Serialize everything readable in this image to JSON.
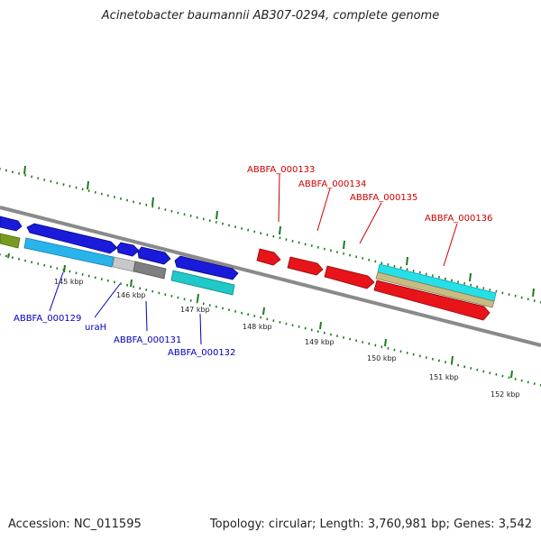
{
  "title": "Acinetobacter baumannii AB307-0294, complete genome",
  "footer": {
    "accession": "Accession: NC_011595",
    "summary": "Topology: circular; Length: 3,760,981 bp; Genes: 3,542"
  },
  "colors": {
    "forward": "#1a1adb",
    "reverse": "#e8141a",
    "cyan": "#25e0e8",
    "light_blue": "#28b4ea",
    "teal": "#20c8c8",
    "gray": "#7f7f7f",
    "light_gray": "#c8c8c8",
    "olive": "#7a9a22",
    "tan": "#c8bc84",
    "backbone": "#888888",
    "tick": "#1f7a1f",
    "label_forward": "#0000bb",
    "label_reverse": "#cc0000"
  },
  "scale": {
    "unit": "kbp",
    "start": 145,
    "end": 152
  },
  "tick_labels": [
    "145 kbp",
    "146 kbp",
    "147 kbp",
    "148 kbp",
    "149 kbp",
    "150 kbp",
    "151 kbp",
    "152 kbp"
  ],
  "gene_labels": {
    "ABBFA_000129": "ABBFA_000129",
    "uraH": "uraH",
    "ABBFA_000131": "ABBFA_000131",
    "ABBFA_000132": "ABBFA_000132",
    "ABBFA_000133": "ABBFA_000133",
    "ABBFA_000134": "ABBFA_000134",
    "ABBFA_000135": "ABBFA_000135",
    "ABBFA_000136": "ABBFA_000136"
  }
}
